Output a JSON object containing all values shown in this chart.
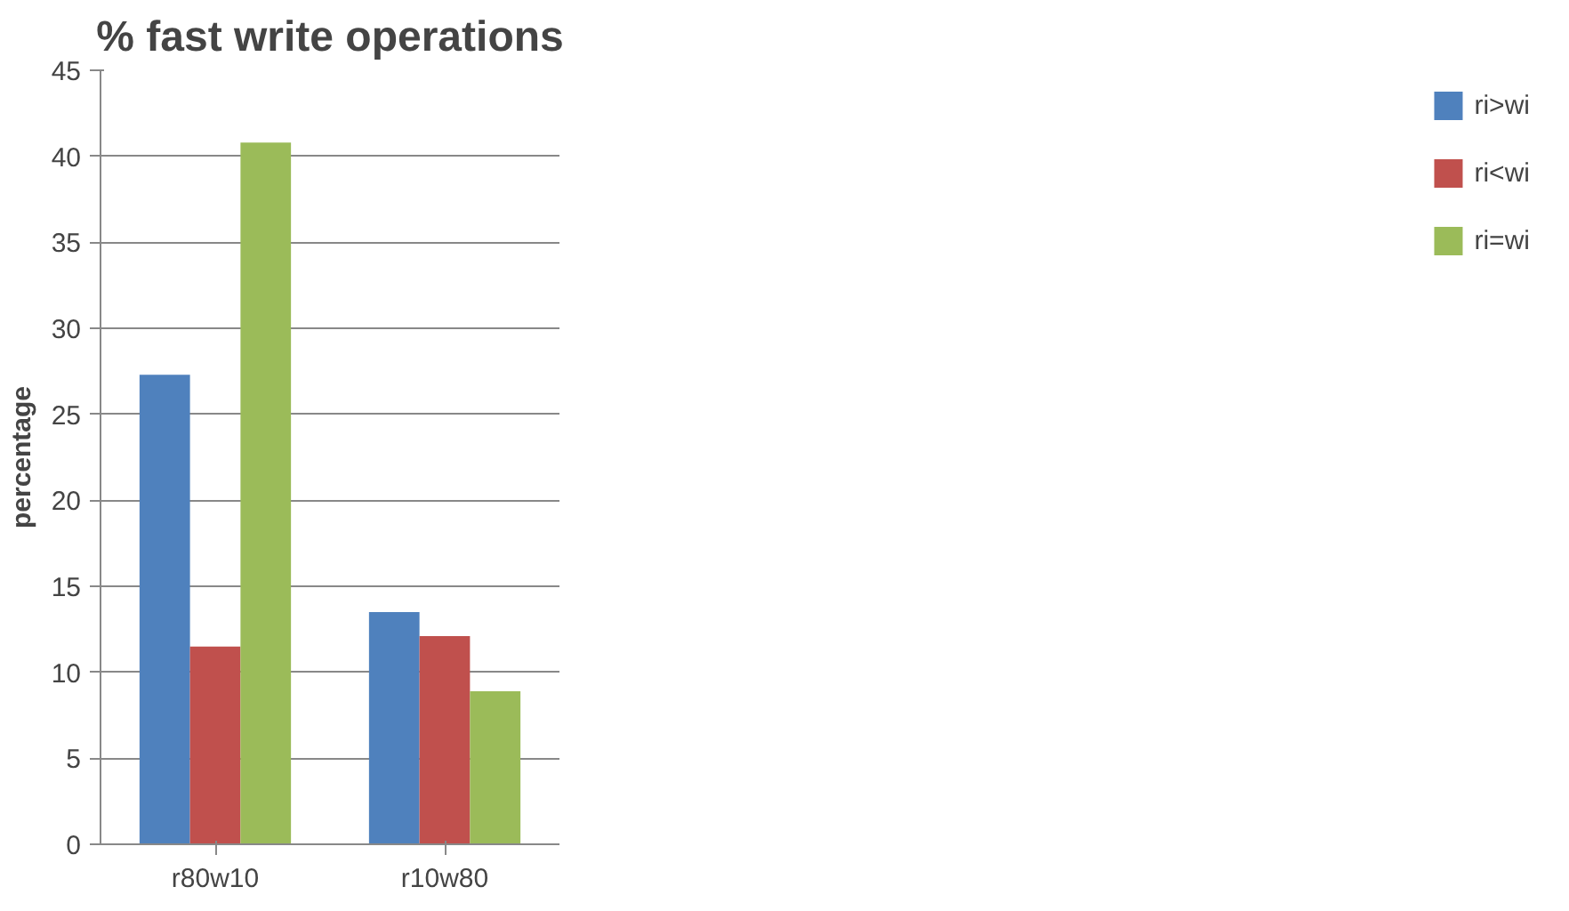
{
  "chart_data": {
    "type": "bar",
    "title": "% fast write operations",
    "ylabel": "percentage",
    "categories": [
      "r80w10",
      "r10w80"
    ],
    "series": [
      {
        "name": "ri>wi",
        "color": "#4f81bd",
        "values": [
          27.3,
          13.5
        ]
      },
      {
        "name": "ri<wi",
        "color": "#c0504d",
        "values": [
          11.5,
          12.1
        ]
      },
      {
        "name": "ri=wi",
        "color": "#9bbb59",
        "values": [
          40.8,
          8.9
        ]
      }
    ],
    "ylim": [
      0,
      45
    ],
    "yticks": [
      0,
      5,
      10,
      15,
      20,
      25,
      30,
      35,
      40,
      45
    ],
    "grid": "y",
    "legend": "right"
  }
}
